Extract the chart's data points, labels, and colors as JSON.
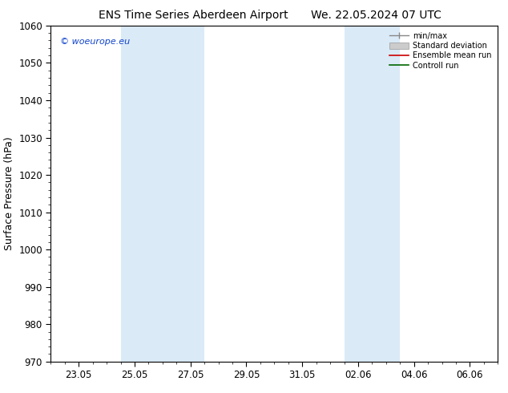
{
  "title_left": "ENS Time Series Aberdeen Airport",
  "title_right": "We. 22.05.2024 07 UTC",
  "ylabel": "Surface Pressure (hPa)",
  "ylim": [
    970,
    1060
  ],
  "yticks": [
    970,
    980,
    990,
    1000,
    1010,
    1020,
    1030,
    1040,
    1050,
    1060
  ],
  "xtick_labels": [
    "23.05",
    "25.05",
    "27.05",
    "29.05",
    "31.05",
    "02.06",
    "04.06",
    "06.06"
  ],
  "xtick_positions": [
    2,
    4,
    6,
    8,
    10,
    12,
    14,
    16
  ],
  "xlim": [
    1,
    17
  ],
  "blue_bands": [
    {
      "xmin": 3.5,
      "xmax": 6.5
    },
    {
      "xmin": 11.5,
      "xmax": 13.5
    }
  ],
  "band_color": "#daeaf7",
  "watermark": "© woeurope.eu",
  "background_color": "#ffffff",
  "title_fontsize": 10,
  "axis_label_fontsize": 9,
  "tick_fontsize": 8.5
}
